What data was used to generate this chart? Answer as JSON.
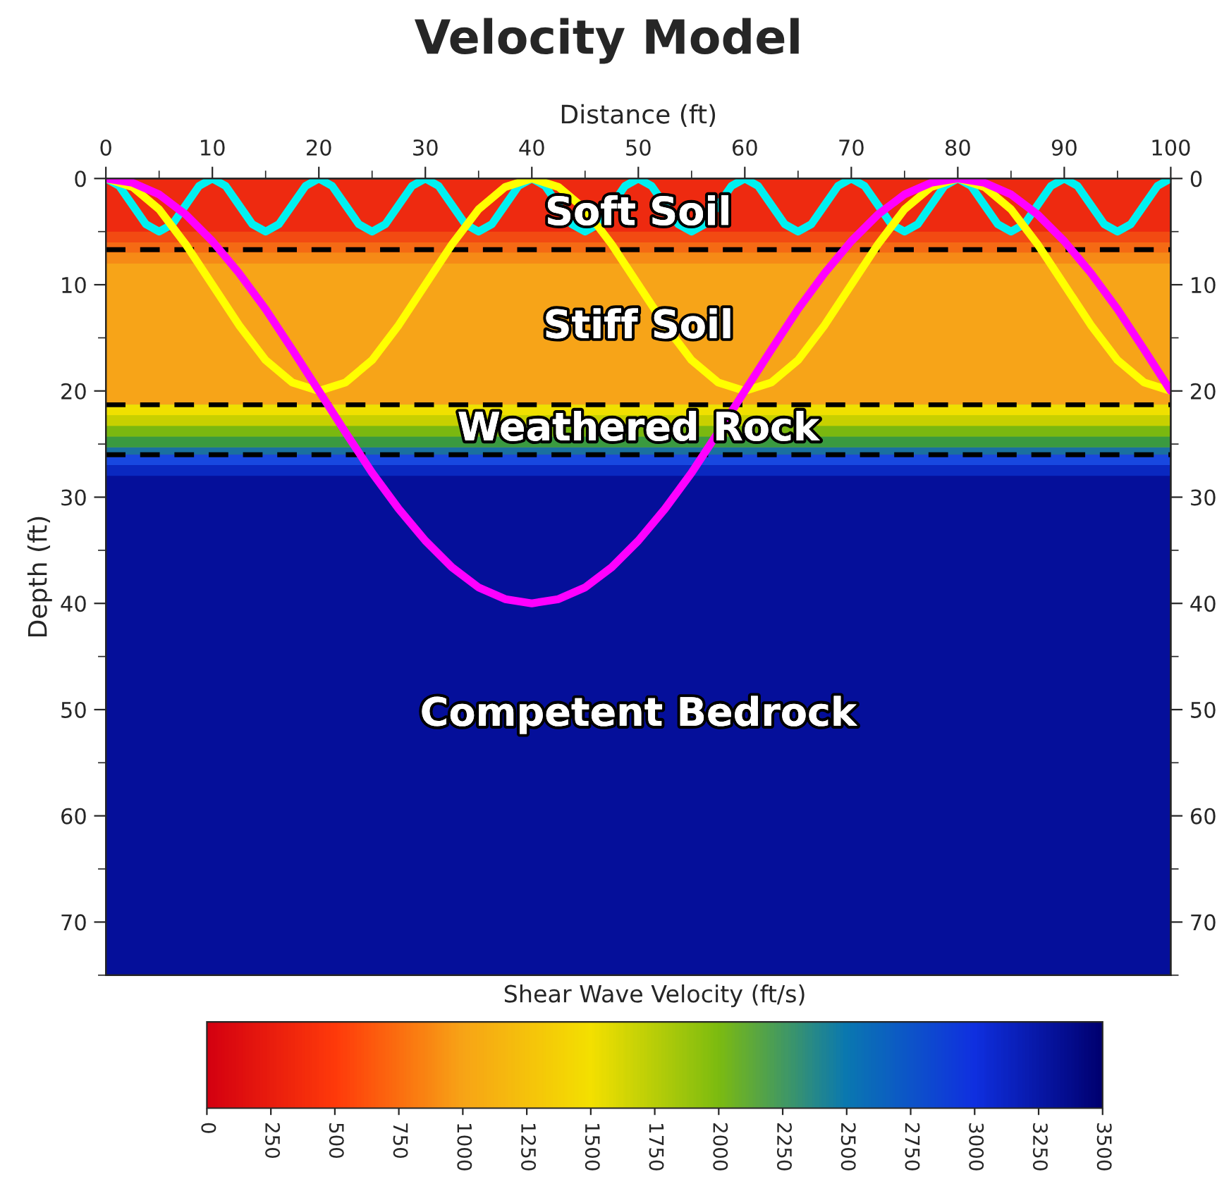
{
  "chart_data": {
    "type": "line",
    "title": "Velocity Model",
    "xlabel": "Distance (ft)",
    "ylabel": "Depth (ft)",
    "clabel": "Shear Wave Velocity (ft/s)",
    "colors": [
      "#d40010",
      "#ff3a0a",
      "#f7a416",
      "#f3e000",
      "#7cbb10",
      "#0a78b0",
      "#0f30e0",
      "#000070"
    ],
    "clim": [
      0,
      3500
    ],
    "cticks": [
      0,
      250,
      500,
      750,
      1000,
      1250,
      1500,
      1750,
      2000,
      2250,
      2500,
      2750,
      3000,
      3250,
      3500
    ],
    "xlim": [
      0,
      100
    ],
    "xticks": [
      0,
      10,
      20,
      30,
      40,
      50,
      60,
      70,
      80,
      90,
      100
    ],
    "ylim": [
      75,
      0
    ],
    "yticks": [
      0,
      10,
      20,
      30,
      40,
      50,
      60,
      70
    ],
    "y2lim": [
      75,
      0
    ],
    "y2ticks": [
      0,
      10,
      20,
      30,
      40,
      50,
      60,
      70
    ],
    "series": [
      {
        "color": "#00f0f0",
        "x": [
          0,
          1.25,
          2.5,
          3.75,
          5,
          6.25,
          7.5,
          8.75,
          10,
          11.25,
          12.5,
          13.75,
          15,
          16.25,
          17.5,
          18.75,
          20,
          21.25,
          22.5,
          23.75,
          25,
          26.25,
          27.5,
          28.75,
          30,
          31.25,
          32.5,
          33.75,
          35,
          36.25,
          37.5,
          38.75,
          40,
          41.25,
          43.75,
          45,
          46.25,
          48.75,
          50,
          51.25,
          52.5,
          53.75,
          55,
          56.25,
          57.5,
          58.75,
          60,
          61.25,
          62.5,
          63.75,
          65,
          66.25,
          67.5,
          68.75,
          70,
          71.25,
          72.5,
          73.75,
          75,
          76.25,
          77.5,
          78.75,
          80,
          81.25,
          82.5,
          83.75,
          85,
          86.25,
          87.5,
          88.75,
          90,
          91.25,
          92.5,
          93.75,
          95,
          96.25,
          97.5,
          98.75,
          100
        ],
        "values": [
          0,
          0.7,
          2.5,
          4.3,
          5,
          4.3,
          2.5,
          0.7,
          0,
          0.7,
          2.5,
          4.3,
          5,
          4.3,
          2.5,
          0.7,
          0,
          0.7,
          2.5,
          4.3,
          5,
          4.3,
          2.5,
          0.7,
          0,
          0.7,
          2.5,
          4.3,
          5,
          4.3,
          2.5,
          0.7,
          0,
          0.7,
          4.3,
          5,
          4.3,
          0.7,
          0,
          0.7,
          2.5,
          4.3,
          5,
          4.3,
          2.5,
          0.7,
          0,
          0.7,
          2.5,
          4.3,
          5,
          4.3,
          2.5,
          0.7,
          0,
          0.7,
          2.5,
          4.3,
          5,
          4.3,
          2.5,
          0.7,
          0,
          0.7,
          2.5,
          4.3,
          5,
          4.3,
          2.5,
          0.7,
          0,
          0.7,
          2.5,
          4.3,
          5,
          4.3,
          2.5,
          0.7,
          0
        ]
      },
      {
        "color": "#ffff00",
        "x": [
          0,
          2.5,
          5,
          7.5,
          10,
          12.5,
          15,
          17.5,
          20,
          22.5,
          25,
          27.5,
          30,
          32.5,
          35,
          37.5,
          40,
          42.5,
          45,
          47.5,
          50,
          52.5,
          55,
          57.5,
          60,
          62.5,
          65,
          67.5,
          70,
          72.5,
          75,
          77.5,
          80,
          82.5,
          85,
          87.5,
          90,
          92.5,
          95,
          97.5,
          100
        ],
        "values": [
          0,
          0.8,
          2.9,
          6.2,
          10,
          13.8,
          17.1,
          19.2,
          20,
          19.2,
          17.1,
          13.8,
          10,
          6.2,
          2.9,
          0.8,
          0,
          0.8,
          2.9,
          6.2,
          10,
          13.8,
          17.1,
          19.2,
          20,
          19.2,
          17.1,
          13.8,
          10,
          6.2,
          2.9,
          0.8,
          0,
          0.8,
          2.9,
          6.2,
          10,
          13.8,
          17.1,
          19.2,
          20
        ]
      },
      {
        "color": "#ff00ff",
        "x": [
          0,
          2.5,
          5,
          7.5,
          10,
          12.5,
          15,
          17.5,
          20,
          22.5,
          25,
          27.5,
          30,
          32.5,
          35,
          37.5,
          40,
          42.5,
          45,
          47.5,
          50,
          52.5,
          55,
          57.5,
          60,
          62.5,
          65,
          67.5,
          70,
          72.5,
          75,
          77.5,
          80,
          82.5,
          85,
          87.5,
          90,
          92.5,
          95,
          97.5,
          100
        ],
        "values": [
          0,
          0.4,
          1.5,
          3.4,
          5.9,
          8.9,
          12.3,
          16.1,
          20,
          23.9,
          27.7,
          31.1,
          34.1,
          36.6,
          38.5,
          39.6,
          40,
          39.6,
          38.5,
          36.6,
          34.1,
          31.1,
          27.7,
          23.9,
          20,
          16.1,
          12.3,
          8.9,
          5.9,
          3.4,
          1.5,
          0.4,
          0,
          0.4,
          1.5,
          3.4,
          5.9,
          8.9,
          12.3,
          16.1,
          20
        ]
      }
    ],
    "bands": [
      {
        "axis": "y",
        "from": 0,
        "to": 6.7,
        "label": "Soft Soil",
        "color": "#ee2a10"
      },
      {
        "axis": "y",
        "from": 6.7,
        "to": 21.3,
        "label": "Stiff Soil",
        "color": "#f7a418"
      },
      {
        "axis": "y",
        "from": 21.3,
        "to": 26,
        "label": "Weathered Rock",
        "color": "#a8c808"
      },
      {
        "axis": "y",
        "from": 26,
        "to": 75,
        "label": "Competent Bedrock",
        "color": "#050f9a"
      },
      {
        "axis": "y",
        "from": 5,
        "to": 6,
        "color": "#f24a12"
      },
      {
        "axis": "y",
        "from": 6,
        "to": 7,
        "color": "#f56a14"
      },
      {
        "axis": "y",
        "from": 7,
        "to": 8,
        "color": "#f68a16"
      },
      {
        "axis": "y",
        "from": 21.3,
        "to": 22.3,
        "color": "#f0e000"
      },
      {
        "axis": "y",
        "from": 22.3,
        "to": 23.3,
        "color": "#c8d000"
      },
      {
        "axis": "y",
        "from": 23.3,
        "to": 24.3,
        "color": "#7ab810"
      },
      {
        "axis": "y",
        "from": 24.3,
        "to": 25.3,
        "color": "#3a9a40"
      },
      {
        "axis": "y",
        "from": 25.3,
        "to": 26,
        "color": "#1a70a0"
      },
      {
        "axis": "y",
        "from": 26,
        "to": 27,
        "color": "#1848e0"
      },
      {
        "axis": "y",
        "from": 27,
        "to": 28,
        "color": "#0a28c0"
      }
    ],
    "ref_lines": [
      {
        "axis": "y",
        "value": 6.7,
        "color": "#000000",
        "line_style": "dashed"
      },
      {
        "axis": "y",
        "value": 21.3,
        "color": "#000000",
        "line_style": "dashed"
      },
      {
        "axis": "y",
        "value": 26,
        "color": "#000000",
        "line_style": "dashed"
      }
    ]
  }
}
